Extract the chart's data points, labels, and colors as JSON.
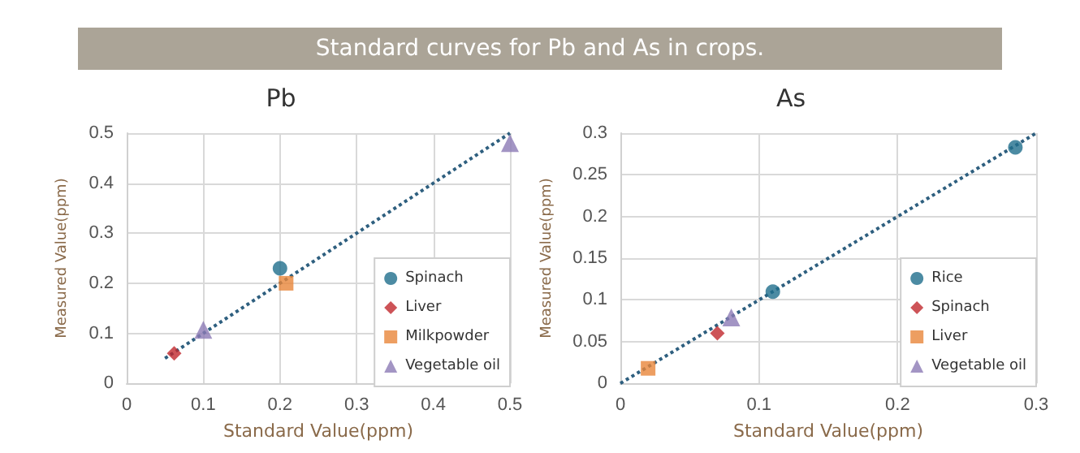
{
  "chart_data": [
    {
      "type": "other",
      "title": "Standard curves for Pb and As in crops."
    },
    {
      "type": "scatter",
      "title": "Pb",
      "xlabel": "Standard Value(ppm)",
      "ylabel": "Measured Value(ppm)",
      "xlim": [
        0,
        0.5
      ],
      "xticks": [
        0,
        0.1,
        0.2,
        0.3,
        0.4,
        0.5
      ],
      "ylim": [
        0,
        0.5
      ],
      "yticks": [
        0,
        0.1,
        0.2,
        0.3,
        0.4,
        0.5
      ],
      "grid": true,
      "legend": "bottom right",
      "series": [
        {
          "name": "Spinach",
          "color": "#1f6e8c",
          "marker": "circle",
          "x": [
            0.2
          ],
          "values": [
            0.23
          ]
        },
        {
          "name": "Liver",
          "color": "#c0282d",
          "marker": "diamond",
          "x": [
            0.062
          ],
          "values": [
            0.06
          ]
        },
        {
          "name": "Milkpowder",
          "color": "#e8863a",
          "marker": "square",
          "x": [
            0.208
          ],
          "values": [
            0.2
          ]
        },
        {
          "name": "Vegetable oil",
          "color": "#8c7bb5",
          "marker": "triangle",
          "x": [
            0.1,
            0.5
          ],
          "values": [
            0.107,
            0.48
          ]
        },
        {
          "type": "line",
          "color": "#2e5f7f",
          "line_style": "dotted",
          "marker": "none",
          "x": [
            0.05,
            0.5
          ],
          "values": [
            0.05,
            0.5
          ]
        }
      ]
    },
    {
      "type": "scatter",
      "title": "As",
      "xlabel": "Standard Value(ppm)",
      "ylabel": "Measured Value(ppm)",
      "xlim": [
        0,
        0.3
      ],
      "xticks": [
        0,
        0.1,
        0.2,
        0.3
      ],
      "ylim": [
        0,
        0.3
      ],
      "yticks": [
        0,
        0.05,
        0.1,
        0.15,
        0.2,
        0.25,
        0.3
      ],
      "grid": true,
      "legend": "bottom right",
      "series": [
        {
          "name": "Rice",
          "color": "#1f6e8c",
          "marker": "circle",
          "x": [
            0.11,
            0.285
          ],
          "values": [
            0.11,
            0.283
          ]
        },
        {
          "name": "Spinach",
          "color": "#c0282d",
          "marker": "diamond",
          "x": [
            0.07
          ],
          "values": [
            0.06
          ]
        },
        {
          "name": "Liver",
          "color": "#e8863a",
          "marker": "square",
          "x": [
            0.02
          ],
          "values": [
            0.018
          ]
        },
        {
          "name": "Vegetable oil",
          "color": "#8c7bb5",
          "marker": "triangle",
          "x": [
            0.08
          ],
          "values": [
            0.079
          ]
        },
        {
          "type": "line",
          "color": "#2e5f7f",
          "line_style": "dotted",
          "marker": "none",
          "x": [
            0,
            0.3
          ],
          "values": [
            0,
            0.3
          ]
        }
      ]
    }
  ]
}
